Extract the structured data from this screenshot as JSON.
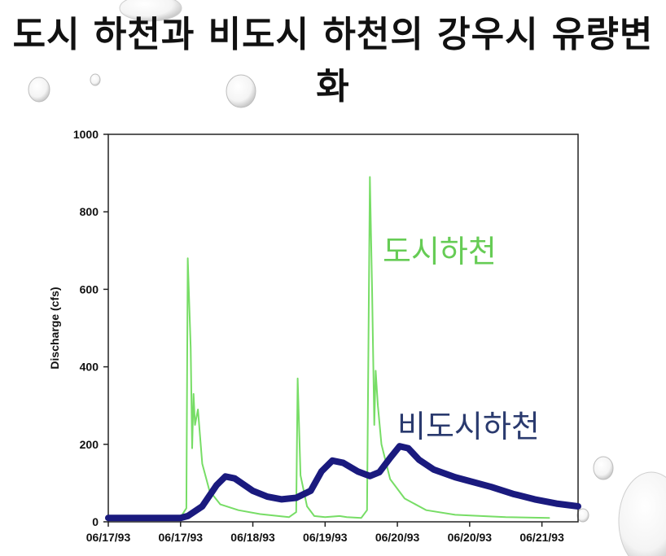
{
  "title": "도시 하천과 비도시 하천의 강우시 유량변화",
  "chart_data": {
    "type": "line",
    "ylabel": "Discharge (cfs)",
    "xlabel": "",
    "ylim": [
      0,
      1000
    ],
    "yticks": [
      0,
      200,
      400,
      600,
      800,
      1000
    ],
    "xlim": [
      0,
      6.5
    ],
    "xticks": [
      {
        "x": 0,
        "label": "06/17/93"
      },
      {
        "x": 1,
        "label": "06/17/93"
      },
      {
        "x": 2,
        "label": "06/18/93"
      },
      {
        "x": 3,
        "label": "06/19/93"
      },
      {
        "x": 4,
        "label": "06/20/93"
      },
      {
        "x": 5,
        "label": "06/20/93"
      },
      {
        "x": 6,
        "label": "06/21/93"
      }
    ],
    "grid": false,
    "series": [
      {
        "name": "도시하천",
        "color": "#77dd66",
        "points": [
          [
            0.0,
            10
          ],
          [
            0.9,
            10
          ],
          [
            1.0,
            12
          ],
          [
            1.08,
            35
          ],
          [
            1.1,
            680
          ],
          [
            1.14,
            450
          ],
          [
            1.16,
            190
          ],
          [
            1.18,
            330
          ],
          [
            1.2,
            250
          ],
          [
            1.24,
            290
          ],
          [
            1.3,
            150
          ],
          [
            1.4,
            80
          ],
          [
            1.55,
            45
          ],
          [
            1.8,
            30
          ],
          [
            2.1,
            20
          ],
          [
            2.5,
            12
          ],
          [
            2.6,
            25
          ],
          [
            2.62,
            370
          ],
          [
            2.66,
            120
          ],
          [
            2.75,
            40
          ],
          [
            2.85,
            15
          ],
          [
            3.0,
            12
          ],
          [
            3.2,
            15
          ],
          [
            3.3,
            12
          ],
          [
            3.5,
            10
          ],
          [
            3.58,
            30
          ],
          [
            3.62,
            890
          ],
          [
            3.65,
            600
          ],
          [
            3.68,
            250
          ],
          [
            3.7,
            390
          ],
          [
            3.73,
            300
          ],
          [
            3.78,
            200
          ],
          [
            3.9,
            110
          ],
          [
            4.1,
            60
          ],
          [
            4.4,
            30
          ],
          [
            4.8,
            18
          ],
          [
            5.5,
            12
          ],
          [
            6.1,
            10
          ]
        ]
      },
      {
        "name": "비도시하천",
        "color": "#1a1a7e",
        "points": [
          [
            0.0,
            10
          ],
          [
            0.5,
            10
          ],
          [
            1.0,
            10
          ],
          [
            1.1,
            15
          ],
          [
            1.3,
            40
          ],
          [
            1.5,
            95
          ],
          [
            1.62,
            117
          ],
          [
            1.75,
            112
          ],
          [
            2.0,
            80
          ],
          [
            2.2,
            65
          ],
          [
            2.4,
            58
          ],
          [
            2.6,
            62
          ],
          [
            2.8,
            80
          ],
          [
            2.95,
            130
          ],
          [
            3.1,
            158
          ],
          [
            3.25,
            152
          ],
          [
            3.45,
            130
          ],
          [
            3.62,
            118
          ],
          [
            3.75,
            128
          ],
          [
            3.9,
            165
          ],
          [
            4.03,
            195
          ],
          [
            4.15,
            190
          ],
          [
            4.3,
            160
          ],
          [
            4.5,
            135
          ],
          [
            4.8,
            115
          ],
          [
            5.0,
            105
          ],
          [
            5.3,
            90
          ],
          [
            5.6,
            72
          ],
          [
            5.9,
            58
          ],
          [
            6.2,
            47
          ],
          [
            6.5,
            40
          ]
        ]
      }
    ]
  }
}
